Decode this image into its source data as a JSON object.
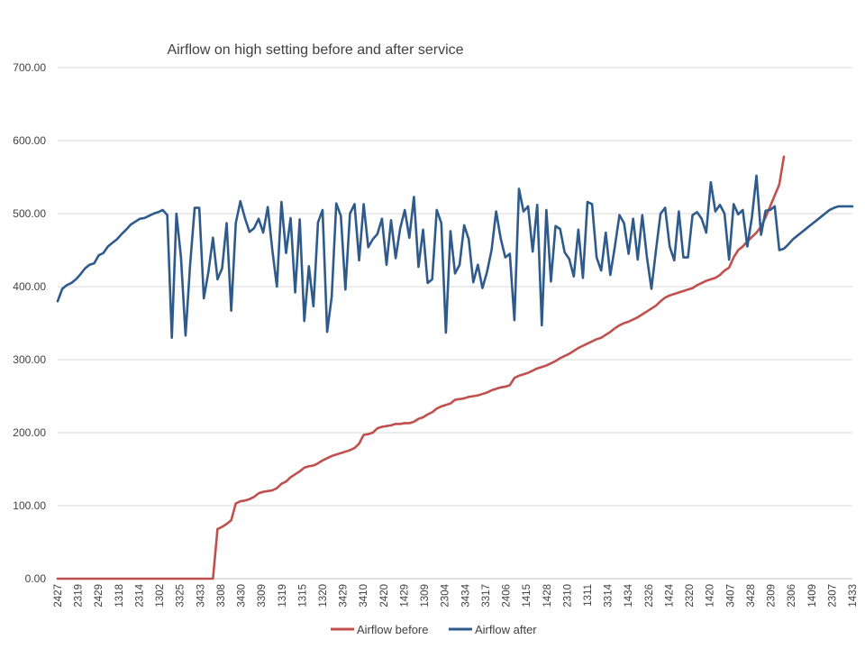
{
  "chart_data": {
    "type": "line",
    "title": "Airflow on high setting before and after service",
    "xlabel": "",
    "ylabel": "",
    "ylim": [
      0,
      700
    ],
    "yticks": [
      0,
      100,
      200,
      300,
      400,
      500,
      600,
      700
    ],
    "ytick_labels": [
      "0.00",
      "100.00",
      "200.00",
      "300.00",
      "400.00",
      "500.00",
      "600.00",
      "700.00"
    ],
    "grid": true,
    "legend_position": "bottom",
    "point_count": 175,
    "x_tick_labels": [
      "2427",
      "2319",
      "2429",
      "1318",
      "2314",
      "1302",
      "3325",
      "3433",
      "3308",
      "3430",
      "3309",
      "1319",
      "1315",
      "1320",
      "3429",
      "3410",
      "2420",
      "1429",
      "1309",
      "2304",
      "3434",
      "3317",
      "2406",
      "1415",
      "1428",
      "2310",
      "1311",
      "3314",
      "1434",
      "2326",
      "1424",
      "2320",
      "1420",
      "3407",
      "3428",
      "2309",
      "2306",
      "1409",
      "2307",
      "1433"
    ],
    "series": [
      {
        "name": "Airflow before",
        "color": "#c0504d",
        "values": [
          0,
          0,
          0,
          0,
          0,
          0,
          0,
          0,
          0,
          0,
          0,
          0,
          0,
          0,
          0,
          0,
          0,
          0,
          0,
          0,
          0,
          0,
          0,
          0,
          0,
          0,
          0,
          0,
          0,
          0,
          0,
          0,
          0,
          0,
          0,
          68,
          71,
          75,
          80,
          103,
          106,
          107,
          109,
          112,
          117,
          119,
          120,
          121,
          124,
          130,
          133,
          139,
          143,
          147,
          152,
          154,
          155,
          158,
          162,
          165,
          168,
          170,
          172,
          174,
          176,
          179,
          185,
          197,
          198,
          200,
          206,
          208,
          209,
          210,
          212,
          212,
          213,
          213,
          215,
          219,
          221,
          225,
          228,
          233,
          236,
          238,
          240,
          245,
          246,
          247,
          249,
          250,
          251,
          253,
          255,
          258,
          260,
          262,
          263,
          265,
          275,
          278,
          280,
          282,
          285,
          288,
          290,
          292,
          295,
          298,
          302,
          305,
          308,
          312,
          316,
          319,
          322,
          325,
          328,
          330,
          334,
          338,
          343,
          347,
          350,
          352,
          355,
          358,
          362,
          366,
          370,
          374,
          380,
          385,
          388,
          390,
          392,
          394,
          396,
          398,
          402,
          405,
          408,
          410,
          412,
          416,
          422,
          426,
          440,
          450,
          455,
          462,
          468,
          474,
          482,
          495,
          510,
          525,
          540,
          578
        ]
      },
      {
        "name": "Airflow after",
        "color": "#2e5a8c",
        "values": [
          380,
          397,
          402,
          405,
          410,
          417,
          425,
          430,
          432,
          443,
          446,
          455,
          460,
          465,
          472,
          478,
          485,
          489,
          493,
          494,
          497,
          500,
          502,
          505,
          498,
          330,
          500,
          440,
          333,
          430,
          508,
          508,
          384,
          420,
          467,
          410,
          425,
          487,
          367,
          487,
          517,
          494,
          475,
          480,
          493,
          474,
          509,
          450,
          400,
          516,
          446,
          494,
          392,
          492,
          353,
          428,
          373,
          488,
          505,
          338,
          386,
          514,
          497,
          396,
          500,
          513,
          436,
          513,
          454,
          465,
          472,
          493,
          430,
          491,
          439,
          480,
          505,
          467,
          523,
          427,
          478,
          405,
          410,
          505,
          487,
          337,
          476,
          418,
          430,
          484,
          465,
          406,
          430,
          398,
          420,
          450,
          503,
          466,
          440,
          445,
          354,
          534,
          503,
          510,
          448,
          512,
          347,
          505,
          407,
          483,
          479,
          447,
          438,
          414,
          478,
          412,
          516,
          513,
          440,
          422,
          474,
          416,
          455,
          498,
          487,
          445,
          493,
          437,
          498,
          441,
          397,
          450,
          500,
          508,
          455,
          436,
          503,
          440,
          440,
          498,
          502,
          493,
          474,
          543,
          503,
          512,
          500,
          437,
          513,
          499,
          505,
          455,
          495,
          552,
          471,
          504,
          505,
          510,
          450,
          452,
          458,
          465,
          470,
          475,
          480,
          485,
          490,
          495,
          500,
          505,
          508,
          510,
          510,
          510,
          510
        ]
      }
    ]
  }
}
